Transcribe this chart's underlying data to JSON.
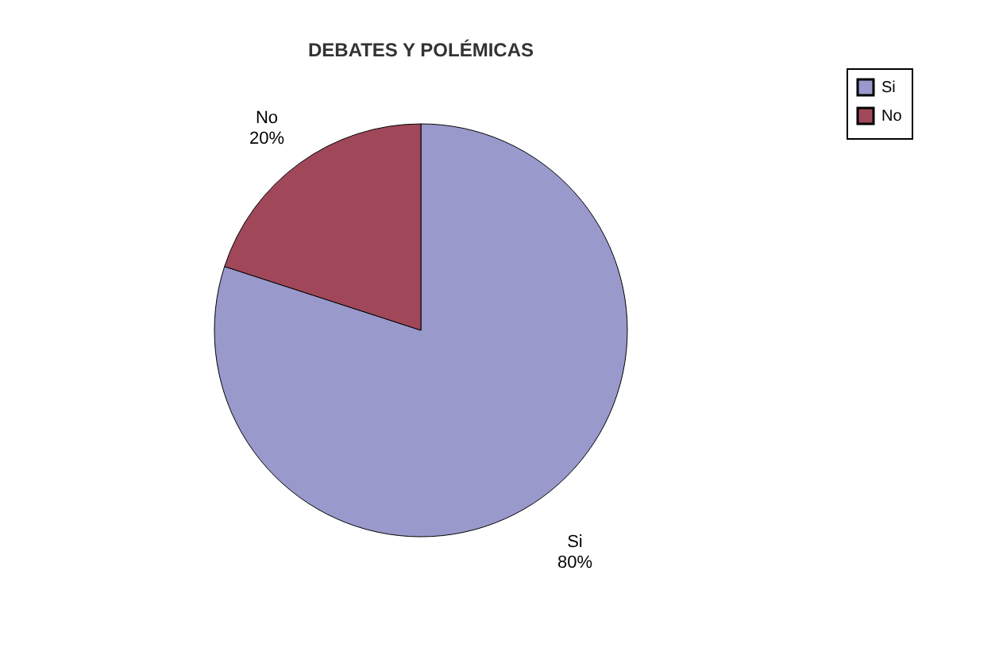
{
  "chart_data": {
    "type": "pie",
    "title": "DEBATES Y POLÉMICAS",
    "categories": [
      "Si",
      "No"
    ],
    "values": [
      80,
      20
    ],
    "value_labels": [
      "80%",
      "20%"
    ],
    "colors": [
      "#9999cc",
      "#a0485a"
    ],
    "legend": "right"
  }
}
